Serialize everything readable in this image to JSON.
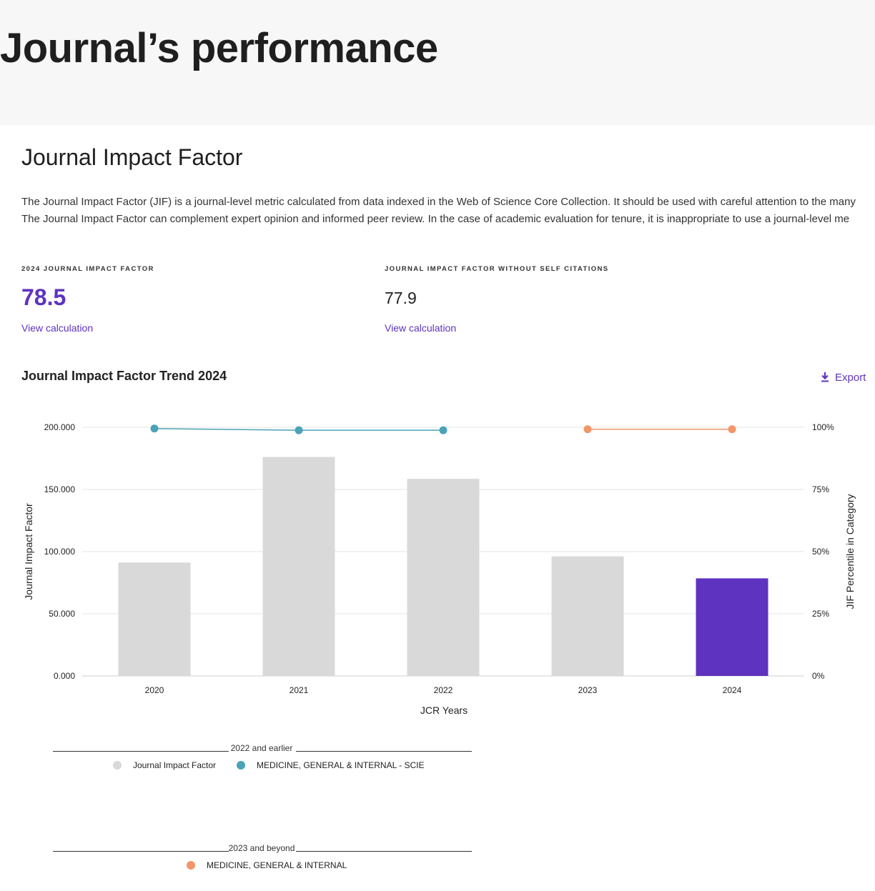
{
  "page": {
    "title": "Journal’s performance"
  },
  "jif_section": {
    "title": "Journal Impact Factor",
    "description_line1": "The Journal Impact Factor (JIF) is a journal-level metric calculated from data indexed in the Web of Science Core Collection. It should be used with careful attention to the many",
    "description_line2": "The Journal Impact Factor can complement expert opinion and informed peer review. In the case of academic evaluation for tenure, it is inappropriate to use a journal-level me"
  },
  "metrics": [
    {
      "label": "2024 JOURNAL IMPACT FACTOR",
      "value": "78.5",
      "link": "View calculation"
    },
    {
      "label": "JOURNAL IMPACT FACTOR WITHOUT SELF CITATIONS",
      "value": "77.9",
      "link": "View calculation"
    }
  ],
  "trend": {
    "title": "Journal Impact Factor Trend 2024",
    "export_label": "Export"
  },
  "colors": {
    "accent": "#5e33bf",
    "bar_default": "#d9d9d9",
    "bar_highlight": "#5e33bf",
    "series_scie": "#4aa3b6",
    "series_internal": "#f4956a",
    "grid": "#e5e5e5"
  },
  "chart_data": {
    "type": "bar",
    "title": "Journal Impact Factor Trend 2024",
    "xlabel": "JCR Years",
    "ylabel": "Journal Impact Factor",
    "y2label": "JIF Percentile in Category",
    "categories": [
      "2020",
      "2021",
      "2022",
      "2023",
      "2024"
    ],
    "ylim": [
      0,
      200
    ],
    "y2lim": [
      0,
      100
    ],
    "y_ticks": [
      "0.000",
      "50.000",
      "100.000",
      "150.000",
      "200.000"
    ],
    "y2_ticks": [
      "0%",
      "25%",
      "50%",
      "75%",
      "100%"
    ],
    "grid": true,
    "bars": {
      "name": "Journal Impact Factor",
      "values": [
        91.2,
        176.1,
        158.5,
        96.2,
        78.5
      ],
      "highlight_index": 4
    },
    "lines": [
      {
        "name": "MEDICINE, GENERAL & INTERNAL - SCIE",
        "values": [
          99.5,
          98.8,
          98.8,
          null,
          null
        ],
        "color": "#4aa3b6"
      },
      {
        "name": "MEDICINE, GENERAL & INTERNAL",
        "values": [
          null,
          null,
          null,
          99.2,
          99.2
        ],
        "color": "#f4956a"
      }
    ],
    "legend_groups": [
      {
        "caption": "2022 and earlier",
        "items": [
          {
            "label": "Journal Impact Factor",
            "color": "#d9d9d9"
          },
          {
            "label": "MEDICINE, GENERAL & INTERNAL - SCIE",
            "color": "#4aa3b6"
          }
        ]
      },
      {
        "caption": "2023 and beyond",
        "items": [
          {
            "label": "MEDICINE, GENERAL & INTERNAL",
            "color": "#f4956a"
          }
        ]
      }
    ]
  }
}
